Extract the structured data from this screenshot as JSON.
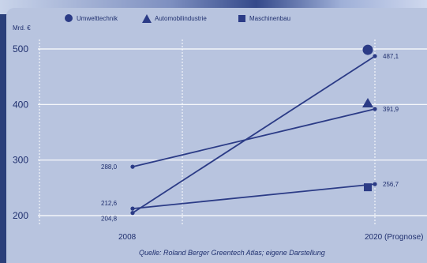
{
  "chart_data": {
    "type": "line",
    "unit": "Mrd. €",
    "x": [
      "2008",
      "2020 (Prognose)"
    ],
    "ylim": [
      200,
      500
    ],
    "yticks": [
      "200",
      "300",
      "400",
      "500"
    ],
    "series": [
      {
        "name": "Umwelttechnik",
        "marker": "circle",
        "values": [
          204.8,
          487.1
        ],
        "labels": [
          "204,8",
          "487,1"
        ]
      },
      {
        "name": "Automobilindustrie",
        "marker": "triangle",
        "values": [
          288.0,
          391.9
        ],
        "labels": [
          "288,0",
          "391,9"
        ]
      },
      {
        "name": "Maschinenbau",
        "marker": "square",
        "values": [
          212.6,
          256.7
        ],
        "labels": [
          "212,6",
          "256,7"
        ]
      }
    ],
    "source": "Quelle: Roland Berger Greentech Atlas; eigene Darstellung",
    "colors": {
      "line": "#2b3b86",
      "text": "#1f2f6e",
      "grid": "#ffffff",
      "background": "#b8c4df"
    }
  }
}
